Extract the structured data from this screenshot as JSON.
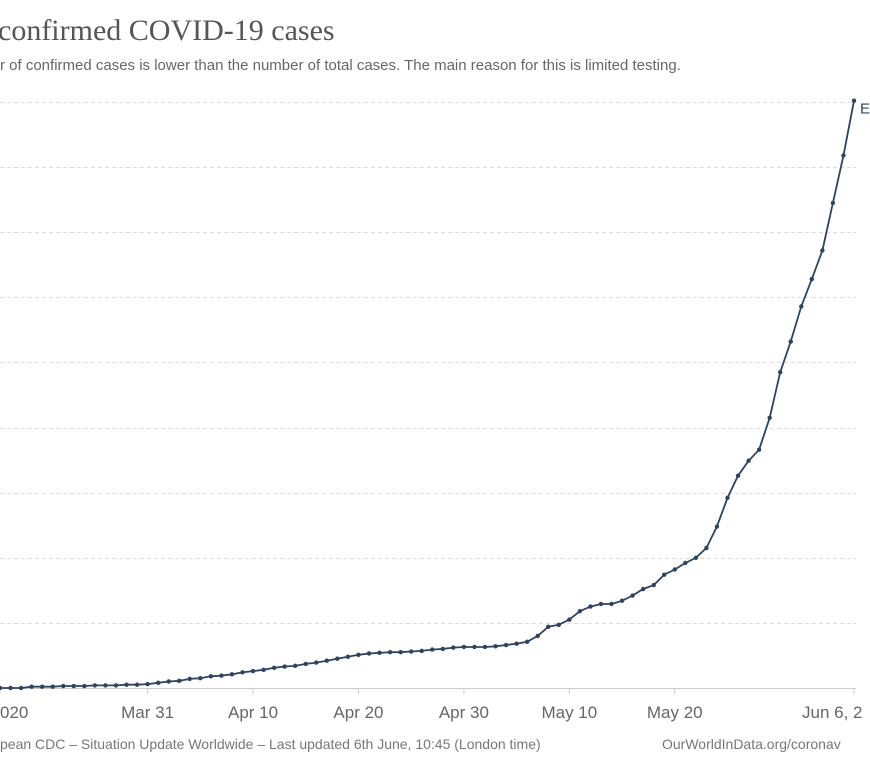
{
  "header": {
    "title": "confirmed COVID-19 cases",
    "subtitle": "r of confirmed cases is lower than the number of total cases. The main reason for this is limited testing."
  },
  "footer": {
    "source": "pean CDC – Situation Update Worldwide – Last updated 6th June, 10:45 (London time)",
    "url": "OurWorldInData.org/coronav"
  },
  "colors": {
    "series": "#2e4360",
    "grid": "#dddddd",
    "axis": "#cccccc"
  },
  "chart_data": {
    "type": "line",
    "title": "confirmed COVID-19 cases",
    "xlabel": "",
    "ylabel": "",
    "y_tick_labels_visible": false,
    "grid": "horizontal dashed",
    "ylim": [
      0,
      9
    ],
    "x_ticks": [
      {
        "date": "2020-03-17",
        "label": "020"
      },
      {
        "date": "2020-03-31",
        "label": "Mar 31"
      },
      {
        "date": "2020-04-10",
        "label": "Apr 10"
      },
      {
        "date": "2020-04-20",
        "label": "Apr 20"
      },
      {
        "date": "2020-04-30",
        "label": "Apr 30"
      },
      {
        "date": "2020-05-10",
        "label": "May 10"
      },
      {
        "date": "2020-05-20",
        "label": "May 20"
      },
      {
        "date": "2020-06-06",
        "label": "Jun 6, 2"
      }
    ],
    "series": [
      {
        "end_label": "E",
        "x": [
          "2020-03-17",
          "2020-03-18",
          "2020-03-19",
          "2020-03-20",
          "2020-03-21",
          "2020-03-22",
          "2020-03-23",
          "2020-03-24",
          "2020-03-25",
          "2020-03-26",
          "2020-03-27",
          "2020-03-28",
          "2020-03-29",
          "2020-03-30",
          "2020-03-31",
          "2020-04-01",
          "2020-04-02",
          "2020-04-03",
          "2020-04-04",
          "2020-04-05",
          "2020-04-06",
          "2020-04-07",
          "2020-04-08",
          "2020-04-09",
          "2020-04-10",
          "2020-04-11",
          "2020-04-12",
          "2020-04-13",
          "2020-04-14",
          "2020-04-15",
          "2020-04-16",
          "2020-04-17",
          "2020-04-18",
          "2020-04-19",
          "2020-04-20",
          "2020-04-21",
          "2020-04-22",
          "2020-04-23",
          "2020-04-24",
          "2020-04-25",
          "2020-04-26",
          "2020-04-27",
          "2020-04-28",
          "2020-04-29",
          "2020-04-30",
          "2020-05-01",
          "2020-05-02",
          "2020-05-03",
          "2020-05-04",
          "2020-05-05",
          "2020-05-06",
          "2020-05-07",
          "2020-05-08",
          "2020-05-09",
          "2020-05-10",
          "2020-05-11",
          "2020-05-12",
          "2020-05-13",
          "2020-05-14",
          "2020-05-15",
          "2020-05-16",
          "2020-05-17",
          "2020-05-18",
          "2020-05-19",
          "2020-05-20",
          "2020-05-21",
          "2020-05-22",
          "2020-05-23",
          "2020-05-24",
          "2020-05-25",
          "2020-05-26",
          "2020-05-27",
          "2020-05-28",
          "2020-05-29",
          "2020-05-30",
          "2020-05-31",
          "2020-06-01",
          "2020-06-02",
          "2020-06-03",
          "2020-06-04",
          "2020-06-05",
          "2020-06-06"
        ],
        "values": [
          0,
          0,
          0,
          0.02,
          0.02,
          0.02,
          0.03,
          0.03,
          0.03,
          0.04,
          0.04,
          0.04,
          0.05,
          0.05,
          0.06,
          0.08,
          0.1,
          0.11,
          0.14,
          0.15,
          0.18,
          0.19,
          0.21,
          0.24,
          0.26,
          0.28,
          0.31,
          0.33,
          0.34,
          0.37,
          0.39,
          0.42,
          0.45,
          0.48,
          0.51,
          0.53,
          0.54,
          0.55,
          0.55,
          0.56,
          0.57,
          0.59,
          0.6,
          0.62,
          0.63,
          0.63,
          0.63,
          0.64,
          0.66,
          0.68,
          0.71,
          0.8,
          0.94,
          0.97,
          1.05,
          1.18,
          1.25,
          1.29,
          1.29,
          1.34,
          1.42,
          1.52,
          1.58,
          1.74,
          1.82,
          1.92,
          2.0,
          2.15,
          2.48,
          2.92,
          3.26,
          3.49,
          3.66,
          4.15,
          4.85,
          5.32,
          5.86,
          6.28,
          6.72,
          7.45,
          8.18,
          9.02
        ]
      }
    ]
  }
}
